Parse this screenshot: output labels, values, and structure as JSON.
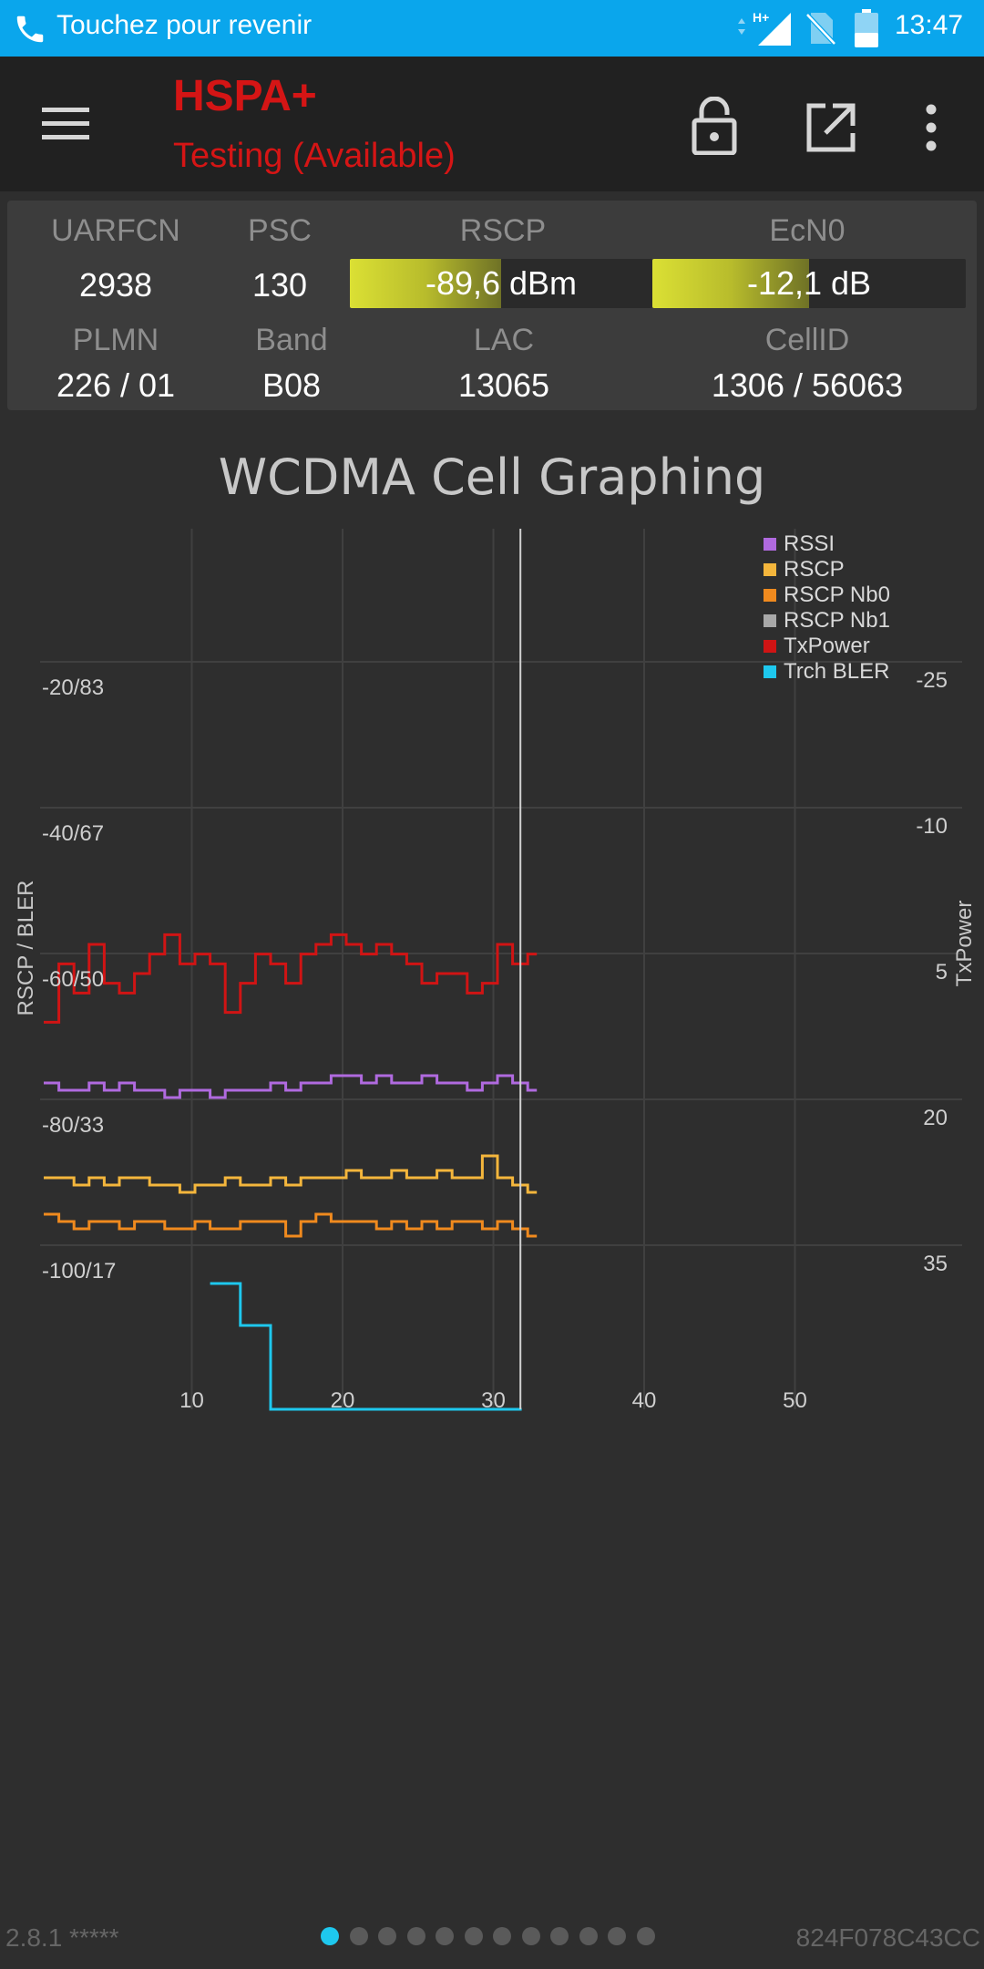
{
  "status_bar": {
    "call_text": "Touchez pour revenir",
    "time": "13:47",
    "network_badge": "H+",
    "icons": [
      "phone-icon",
      "signal-icon",
      "no-sim-icon",
      "battery-icon"
    ]
  },
  "toolbar": {
    "title": "HSPA+",
    "subtitle": "Testing (Available)",
    "icons": [
      "menu-icon",
      "lock-icon",
      "open-external-icon",
      "more-vert-icon"
    ],
    "title_color": "#d51515"
  },
  "cell_info": {
    "uarfcn_label": "UARFCN",
    "uarfcn": "2938",
    "psc_label": "PSC",
    "psc": "130",
    "rscp_label": "RSCP",
    "rscp_value": "-89,6 dBm",
    "rscp_fill": 0.5,
    "ecn0_label": "EcN0",
    "ecn0_value": "-12,1 dB",
    "ecn0_fill": 0.5,
    "plmn_label": "PLMN",
    "plmn": "226 / 01",
    "band_label": "Band",
    "band": "B08",
    "lac_label": "LAC",
    "lac": "13065",
    "cellid_label": "CellID",
    "cellid": "1306 / 56063"
  },
  "chart": {
    "title": "WCDMA Cell Graphing",
    "left_axis_label": "RSCP / BLER",
    "right_axis_label": "TxPower"
  },
  "chart_data": {
    "type": "line",
    "title": "WCDMA Cell Graphing",
    "ylabel": "RSCP / BLER",
    "y2label": "TxPower",
    "x_ticks": [
      "10",
      "20",
      "30",
      "40",
      "50"
    ],
    "xlim": [
      0,
      60
    ],
    "y_ticks_left": [
      "-20/83",
      "-40/67",
      "-60/50",
      "-80/33",
      "-100/17"
    ],
    "y_ticks_right": [
      "-25",
      "-10",
      "5",
      "20",
      "35"
    ],
    "ylim": [
      -120,
      0
    ],
    "cursor_x": 32,
    "grid": true,
    "legend_position": "top-right",
    "series": [
      {
        "name": "RSSI",
        "color": "#b06adf",
        "x": [
          0,
          1,
          2,
          3,
          4,
          5,
          6,
          7,
          8,
          9,
          10,
          11,
          12,
          13,
          14,
          15,
          16,
          17,
          18,
          19,
          20,
          21,
          22,
          23,
          24,
          25,
          26,
          27,
          28,
          29,
          30,
          31,
          32
        ],
        "values": [
          -75,
          -76,
          -76,
          -75,
          -76,
          -75,
          -76,
          -76,
          -77,
          -76,
          -76,
          -77,
          -76,
          -76,
          -76,
          -75,
          -76,
          -75,
          -75,
          -74,
          -74,
          -75,
          -74,
          -75,
          -75,
          -74,
          -75,
          -75,
          -76,
          -75,
          -74,
          -75,
          -76
        ]
      },
      {
        "name": "RSCP",
        "color": "#f4b63c",
        "x": [
          0,
          1,
          2,
          3,
          4,
          5,
          6,
          7,
          8,
          9,
          10,
          11,
          12,
          13,
          14,
          15,
          16,
          17,
          18,
          19,
          20,
          21,
          22,
          23,
          24,
          25,
          26,
          27,
          28,
          29,
          30,
          31,
          32
        ],
        "values": [
          -88,
          -88,
          -89,
          -88,
          -89,
          -88,
          -88,
          -89,
          -89,
          -90,
          -89,
          -89,
          -88,
          -89,
          -89,
          -88,
          -89,
          -88,
          -88,
          -88,
          -87,
          -88,
          -88,
          -87,
          -88,
          -88,
          -87,
          -88,
          -88,
          -85,
          -88,
          -89,
          -90
        ]
      },
      {
        "name": "RSCP Nb0",
        "color": "#f08a1e",
        "x": [
          0,
          1,
          2,
          3,
          4,
          5,
          6,
          7,
          8,
          9,
          10,
          11,
          12,
          13,
          14,
          15,
          16,
          17,
          18,
          19,
          20,
          21,
          22,
          23,
          24,
          25,
          26,
          27,
          28,
          29,
          30,
          31,
          32
        ],
        "values": [
          -93,
          -94,
          -95,
          -94,
          -94,
          -95,
          -94,
          -94,
          -95,
          -95,
          -94,
          -95,
          -95,
          -94,
          -94,
          -94,
          -96,
          -94,
          -93,
          -94,
          -94,
          -94,
          -95,
          -94,
          -95,
          -94,
          -95,
          -94,
          -94,
          -95,
          -94,
          -95,
          -96
        ]
      },
      {
        "name": "RSCP Nb1",
        "color": "#a8a8a8",
        "x": [],
        "values": []
      },
      {
        "name": "TxPower",
        "color": "#d01414",
        "x": [
          0,
          1,
          2,
          3,
          4,
          5,
          6,
          7,
          8,
          9,
          10,
          11,
          12,
          13,
          14,
          15,
          16,
          17,
          18,
          19,
          20,
          21,
          22,
          23,
          24,
          25,
          26,
          27,
          28,
          29,
          30,
          31,
          32
        ],
        "values": [
          10,
          4,
          7,
          2,
          6,
          7,
          5,
          3,
          1,
          4,
          3,
          4,
          9,
          6,
          3,
          4,
          6,
          3,
          2,
          1,
          2,
          3,
          2,
          3,
          4,
          6,
          5,
          5,
          7,
          6,
          2,
          4,
          3
        ]
      },
      {
        "name": "Trch BLER",
        "color": "#1ec8ee",
        "x": [
          11,
          13,
          15,
          17,
          19,
          21,
          23,
          25,
          27,
          29,
          31
        ],
        "values": [
          12,
          8,
          0,
          0,
          0,
          0,
          0,
          0,
          0,
          0,
          0
        ]
      }
    ]
  },
  "footer": {
    "version": "2.8.1 *****",
    "device_id": "824F078C43CC",
    "page_count": 12,
    "active_page": 0
  }
}
